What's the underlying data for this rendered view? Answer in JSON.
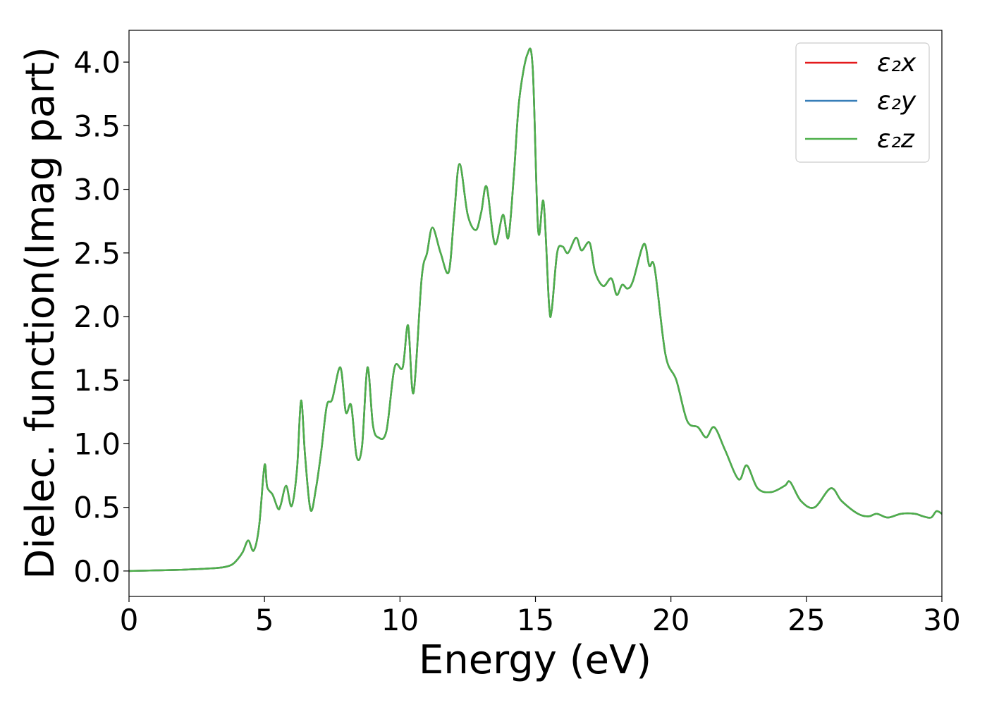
{
  "chart_data": {
    "type": "line",
    "title": "",
    "xlabel": "Energy (eV)",
    "ylabel": "Dielec. function(Imag part)",
    "xlim": [
      0,
      30
    ],
    "ylim": [
      -0.2,
      4.25
    ],
    "xticks": [
      0,
      5,
      10,
      15,
      20,
      25,
      30
    ],
    "xtick_labels": [
      "0",
      "5",
      "10",
      "15",
      "20",
      "25",
      "30"
    ],
    "yticks": [
      0.0,
      0.5,
      1.0,
      1.5,
      2.0,
      2.5,
      3.0,
      3.5,
      4.0
    ],
    "ytick_labels": [
      "0.0",
      "0.5",
      "1.0",
      "1.5",
      "2.0",
      "2.5",
      "3.0",
      "3.5",
      "4.0"
    ],
    "grid": false,
    "legend_position": "top-right",
    "series": [
      {
        "name": "ε₂x",
        "color": "#e41a1c"
      },
      {
        "name": "ε₂y",
        "color": "#377eb8"
      },
      {
        "name": "ε₂z",
        "color": "#4daf4a"
      }
    ],
    "x": [
      0,
      1,
      2,
      3,
      3.5,
      3.8,
      4.0,
      4.2,
      4.4,
      4.6,
      4.8,
      5.0,
      5.1,
      5.3,
      5.5,
      5.6,
      5.8,
      6.0,
      6.2,
      6.35,
      6.5,
      6.7,
      6.9,
      7.1,
      7.3,
      7.5,
      7.8,
      8.0,
      8.2,
      8.4,
      8.6,
      8.8,
      9.0,
      9.2,
      9.5,
      9.8,
      10.1,
      10.3,
      10.5,
      10.8,
      11.0,
      11.2,
      11.5,
      11.8,
      12.0,
      12.2,
      12.5,
      12.8,
      13.0,
      13.2,
      13.5,
      13.8,
      14.0,
      14.2,
      14.4,
      14.7,
      14.9,
      15.1,
      15.3,
      15.5,
      15.6,
      15.8,
      16.0,
      16.2,
      16.5,
      16.7,
      17.0,
      17.2,
      17.5,
      17.8,
      18.0,
      18.2,
      18.4,
      18.6,
      19.0,
      19.2,
      19.4,
      19.8,
      20.2,
      20.6,
      21.0,
      21.3,
      21.6,
      22.0,
      22.5,
      22.8,
      23.2,
      23.7,
      24.2,
      24.4,
      24.8,
      25.3,
      25.9,
      26.3,
      26.9,
      27.3,
      27.6,
      28.0,
      28.5,
      29.0,
      29.3,
      29.6,
      29.8,
      30.0
    ],
    "y": [
      0.0,
      0.005,
      0.01,
      0.02,
      0.03,
      0.05,
      0.09,
      0.15,
      0.24,
      0.16,
      0.35,
      0.83,
      0.66,
      0.6,
      0.49,
      0.52,
      0.67,
      0.51,
      0.8,
      1.34,
      0.9,
      0.48,
      0.65,
      0.95,
      1.3,
      1.35,
      1.6,
      1.25,
      1.3,
      0.9,
      0.98,
      1.6,
      1.15,
      1.05,
      1.1,
      1.6,
      1.6,
      1.93,
      1.4,
      2.3,
      2.5,
      2.7,
      2.5,
      2.35,
      2.8,
      3.2,
      2.8,
      2.68,
      2.82,
      3.02,
      2.57,
      2.8,
      2.62,
      3.1,
      3.7,
      4.06,
      3.95,
      2.68,
      2.9,
      2.1,
      2.05,
      2.5,
      2.55,
      2.5,
      2.62,
      2.52,
      2.58,
      2.35,
      2.24,
      2.3,
      2.17,
      2.25,
      2.22,
      2.28,
      2.57,
      2.4,
      2.38,
      1.7,
      1.5,
      1.18,
      1.13,
      1.05,
      1.13,
      0.95,
      0.72,
      0.83,
      0.65,
      0.62,
      0.67,
      0.7,
      0.55,
      0.5,
      0.65,
      0.55,
      0.45,
      0.43,
      0.45,
      0.42,
      0.45,
      0.45,
      0.43,
      0.42,
      0.47,
      0.45
    ]
  }
}
